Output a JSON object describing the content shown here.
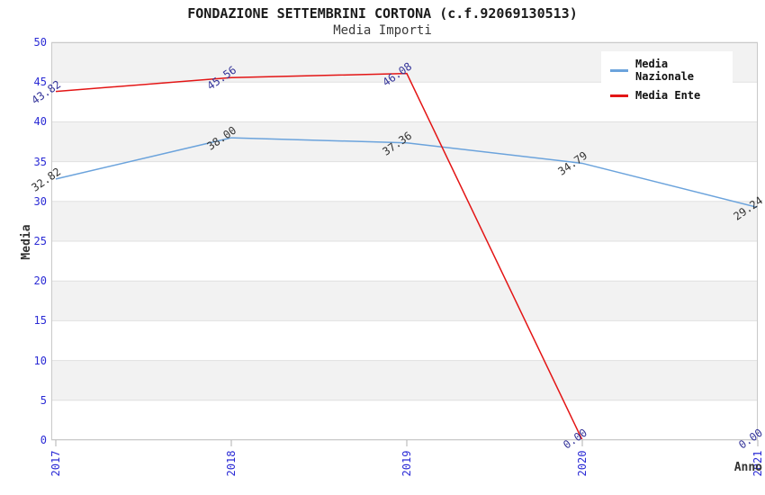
{
  "chart_data": {
    "type": "line",
    "title": "FONDAZIONE SETTEMBRINI CORTONA (c.f.92069130513)",
    "subtitle": "Media Importi",
    "x": [
      "2017",
      "2018",
      "2019",
      "2020",
      "2021"
    ],
    "series": [
      {
        "name": "Media Nazionale",
        "color": "#6ba3dc",
        "label_color": "#333333",
        "values": [
          32.82,
          38.0,
          37.36,
          34.79,
          29.24
        ]
      },
      {
        "name": "Media Ente",
        "color": "#e31515",
        "label_color": "#333399",
        "values": [
          43.82,
          45.56,
          46.08,
          0.0,
          0.0
        ]
      }
    ],
    "xlabel": "Anno",
    "ylabel": "Media",
    "ylim": [
      0,
      50
    ],
    "ytick_step": 5,
    "yticks": [
      0,
      5,
      10,
      15,
      20,
      25,
      30,
      35,
      40,
      45,
      50
    ],
    "legend_position": "top-right",
    "grid": "horizontal-bands",
    "value_label_format": "2-decimals",
    "colors": {
      "tick_label": "#2b2bd5",
      "band": "#f2f2f2",
      "gridline": "#e0e0e0",
      "frame": "#c9c9c9",
      "tick_mark": "#b0b0b0"
    }
  }
}
